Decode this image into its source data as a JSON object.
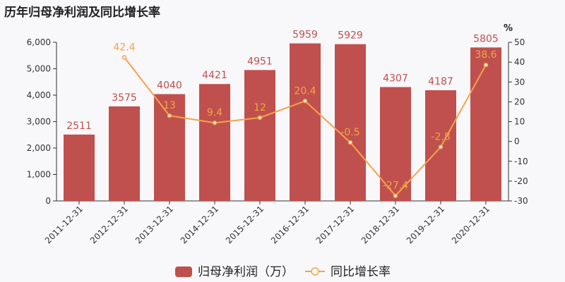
{
  "chart_data": {
    "type": "bar+line",
    "title": "历年归母净利润及同比增长率",
    "categories": [
      "2011-12-31",
      "2012-12-31",
      "2013-12-31",
      "2014-12-31",
      "2015-12-31",
      "2016-12-31",
      "2017-12-31",
      "2018-12-31",
      "2019-12-31",
      "2020-12-31"
    ],
    "series": [
      {
        "name": "归母净利润（万）",
        "type": "bar",
        "axis": "left",
        "values": [
          2511,
          3575,
          4040,
          4421,
          4951,
          5959,
          5929,
          4307,
          4187,
          5805
        ],
        "labels": [
          "2511",
          "3575",
          "4040",
          "4421",
          "4951",
          "5959",
          "5929",
          "4307",
          "4187",
          "5805"
        ]
      },
      {
        "name": "同比增长率",
        "type": "line",
        "axis": "right",
        "values": [
          null,
          42.4,
          13,
          9.4,
          12,
          20.4,
          -0.5,
          -27.4,
          -2.8,
          38.6
        ],
        "labels": [
          "",
          "42.4",
          "13",
          "9.4",
          "12",
          "20.4",
          "-0.5",
          "-27.4",
          "-2.8",
          "38.6"
        ]
      }
    ],
    "y_left": {
      "range": [
        0,
        6000
      ],
      "ticks": [
        "0",
        "1,000",
        "2,000",
        "3,000",
        "4,000",
        "5,000",
        "6,000"
      ]
    },
    "y_right": {
      "range": [
        -30,
        50
      ],
      "unit": "%",
      "ticks": [
        "-30",
        "-20",
        "-10",
        "0",
        "10",
        "20",
        "30",
        "40",
        "50"
      ]
    },
    "grid": false,
    "legend_position": "bottom-center",
    "colors": {
      "bar": "#c0504d",
      "line": "#f3a34b",
      "background": "#f8f7fa"
    }
  }
}
